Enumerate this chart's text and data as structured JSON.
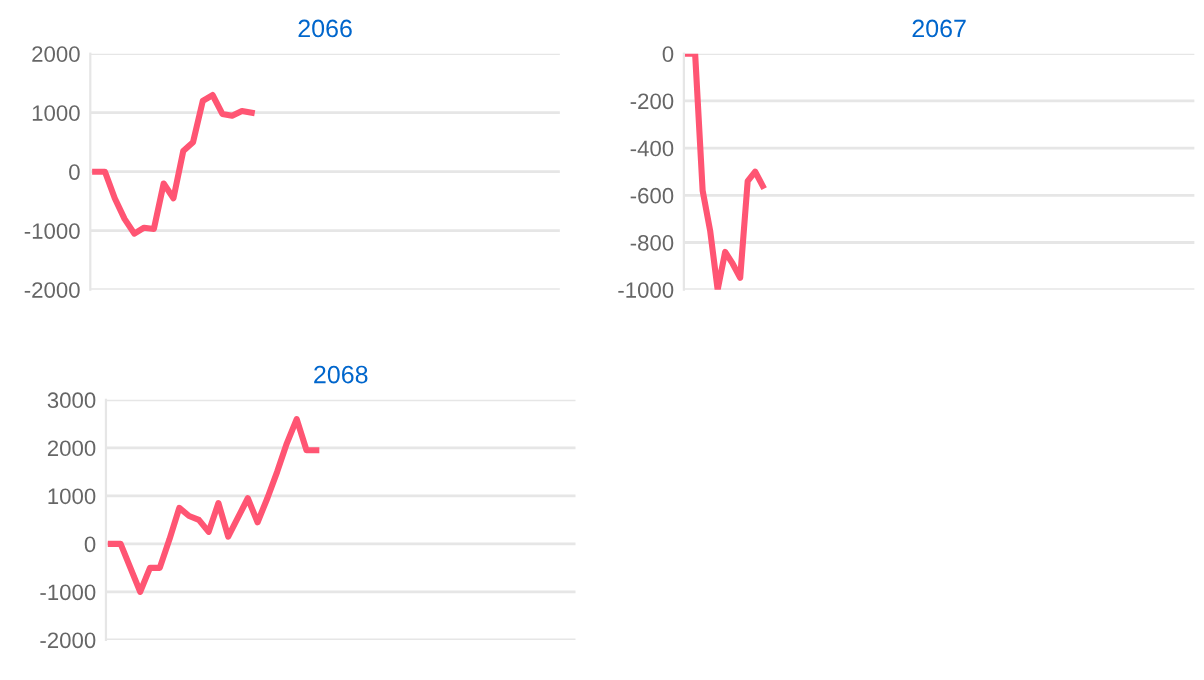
{
  "chart_data": [
    {
      "type": "line",
      "title": "2066",
      "categories": [
        null,
        null,
        null,
        null,
        null,
        null,
        null,
        null,
        null,
        null,
        null,
        null,
        null,
        null,
        null,
        null,
        null,
        null,
        null,
        null,
        null,
        null,
        null,
        null,
        null,
        null,
        null,
        null,
        null,
        null,
        null,
        null,
        null,
        null,
        null,
        null,
        null,
        null,
        null,
        null,
        null,
        null,
        null,
        null,
        null,
        null,
        null,
        null
      ],
      "series": [
        {
          "color": "#ff5573",
          "values": [
            0,
            0,
            -450,
            -800,
            -1050,
            -950,
            -970,
            -200,
            -450,
            350,
            500,
            1200,
            1300,
            980,
            950,
            1030,
            1000,
            null,
            null,
            null,
            null,
            null,
            null,
            null,
            null,
            null,
            null,
            null,
            null,
            null,
            null,
            null,
            null,
            null,
            null,
            null,
            null,
            null,
            null,
            null,
            null,
            null,
            null,
            null,
            null,
            null,
            null,
            null
          ]
        }
      ],
      "ylim": [
        -2000,
        2000
      ],
      "yticks": [
        -2000,
        -1000,
        0,
        1000,
        2000
      ],
      "grid": "y",
      "tick_labels": "y"
    },
    {
      "type": "line",
      "title": "2067",
      "categories": [
        null,
        null,
        null,
        null,
        null,
        null,
        null,
        null,
        null,
        null,
        null,
        null,
        null,
        null,
        null,
        null,
        null,
        null,
        null,
        null,
        null,
        null,
        null,
        null,
        null,
        null,
        null,
        null,
        null,
        null,
        null,
        null,
        null,
        null,
        null,
        null,
        null,
        null,
        null,
        null,
        null,
        null,
        null,
        null,
        null,
        null,
        null,
        null,
        null,
        null,
        null,
        null,
        null,
        null,
        null,
        null,
        null,
        null,
        null,
        null,
        null,
        null,
        null,
        null,
        null,
        null,
        null,
        null
      ],
      "series": [
        {
          "color": "#ff5573",
          "values": [
            0,
            0,
            -580,
            -750,
            -1000,
            -840,
            -890,
            -950,
            -540,
            -500,
            -560,
            null,
            null,
            null,
            null,
            null,
            null,
            null,
            null,
            null,
            null,
            null,
            null,
            null,
            null,
            null,
            null,
            null,
            null,
            null,
            null,
            null,
            null,
            null,
            null,
            null,
            null,
            null,
            null,
            null,
            null,
            null,
            null,
            null,
            null,
            null,
            null,
            null,
            null,
            null,
            null,
            null,
            null,
            null,
            null,
            null,
            null,
            null,
            null,
            null,
            null,
            null,
            null,
            null,
            null,
            null,
            null,
            null
          ]
        }
      ],
      "ylim": [
        -1000,
        0
      ],
      "yticks": [
        -1000,
        -800,
        -600,
        -400,
        -200,
        0
      ],
      "grid": "y",
      "tick_labels": "y"
    },
    {
      "type": "line",
      "title": "2068",
      "categories": [
        null,
        null,
        null,
        null,
        null,
        null,
        null,
        null,
        null,
        null,
        null,
        null,
        null,
        null,
        null,
        null,
        null,
        null,
        null,
        null,
        null,
        null,
        null,
        null,
        null,
        null,
        null,
        null,
        null,
        null,
        null,
        null,
        null,
        null,
        null,
        null,
        null,
        null,
        null,
        null,
        null,
        null,
        null,
        null,
        null,
        null,
        null,
        null
      ],
      "series": [
        {
          "color": "#ff5573",
          "values": [
            0,
            0,
            -500,
            -1000,
            -500,
            -500,
            100,
            750,
            580,
            500,
            250,
            850,
            150,
            550,
            950,
            450,
            950,
            1500,
            2100,
            2600,
            1950,
            1950,
            null,
            null,
            null,
            null,
            null,
            null,
            null,
            null,
            null,
            null,
            null,
            null,
            null,
            null,
            null,
            null,
            null,
            null,
            null,
            null,
            null,
            null,
            null,
            null,
            null,
            null
          ]
        }
      ],
      "ylim": [
        -2000,
        3000
      ],
      "yticks": [
        -2000,
        -1000,
        0,
        1000,
        2000,
        3000
      ],
      "grid": "y",
      "tick_labels": "y"
    }
  ]
}
